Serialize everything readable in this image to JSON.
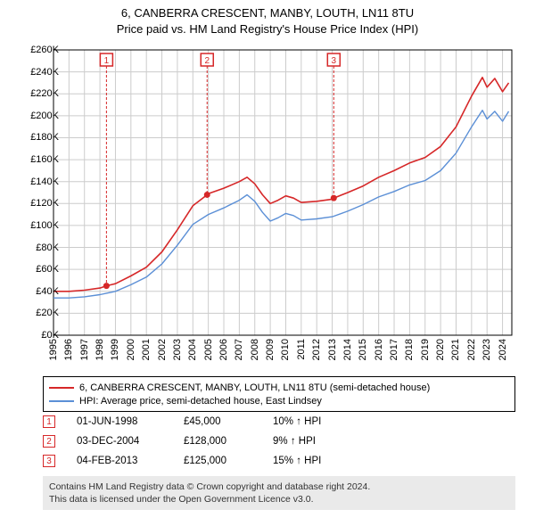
{
  "title": {
    "line1": "6, CANBERRA CRESCENT, MANBY, LOUTH, LN11 8TU",
    "line2": "Price paid vs. HM Land Registry's House Price Index (HPI)"
  },
  "chart": {
    "type": "line",
    "background_color": "#ffffff",
    "grid_color": "#cccccc",
    "axis_color": "#000000",
    "x_years": [
      1995,
      1996,
      1997,
      1998,
      1999,
      2000,
      2001,
      2002,
      2003,
      2004,
      2005,
      2006,
      2007,
      2008,
      2009,
      2010,
      2011,
      2012,
      2013,
      2014,
      2015,
      2016,
      2017,
      2018,
      2019,
      2020,
      2021,
      2022,
      2023,
      2024
    ],
    "xlim": [
      1995,
      2024.6
    ],
    "ylim": [
      0,
      260000
    ],
    "ytick_step": 20000,
    "ytick_prefix": "£",
    "ytick_suffix": "K",
    "label_fontsize": 11,
    "series": [
      {
        "name": "6, CANBERRA CRESCENT, MANBY, LOUTH, LN11 8TU (semi-detached house)",
        "color": "#d62728",
        "line_width": 1.6,
        "data": [
          [
            1995,
            40000
          ],
          [
            1996,
            40000
          ],
          [
            1997,
            41000
          ],
          [
            1998,
            43000
          ],
          [
            1998.42,
            45000
          ],
          [
            1999,
            47000
          ],
          [
            2000,
            54000
          ],
          [
            2001,
            62000
          ],
          [
            2002,
            76000
          ],
          [
            2003,
            96000
          ],
          [
            2004,
            118000
          ],
          [
            2004.92,
            128000
          ],
          [
            2005,
            129000
          ],
          [
            2006,
            134000
          ],
          [
            2007,
            140000
          ],
          [
            2007.5,
            144000
          ],
          [
            2008,
            138000
          ],
          [
            2008.5,
            128000
          ],
          [
            2009,
            120000
          ],
          [
            2009.5,
            123000
          ],
          [
            2010,
            127000
          ],
          [
            2010.5,
            125000
          ],
          [
            2011,
            121000
          ],
          [
            2012,
            122000
          ],
          [
            2013,
            124000
          ],
          [
            2013.1,
            125000
          ],
          [
            2014,
            130000
          ],
          [
            2015,
            136000
          ],
          [
            2016,
            144000
          ],
          [
            2017,
            150000
          ],
          [
            2018,
            157000
          ],
          [
            2019,
            162000
          ],
          [
            2020,
            172000
          ],
          [
            2021,
            190000
          ],
          [
            2022,
            218000
          ],
          [
            2022.7,
            235000
          ],
          [
            2023,
            226000
          ],
          [
            2023.5,
            234000
          ],
          [
            2024,
            222000
          ],
          [
            2024.4,
            230000
          ]
        ]
      },
      {
        "name": "HPI: Average price, semi-detached house, East Lindsey",
        "color": "#5b8fd6",
        "line_width": 1.4,
        "data": [
          [
            1995,
            34000
          ],
          [
            1996,
            34000
          ],
          [
            1997,
            35000
          ],
          [
            1998,
            37000
          ],
          [
            1999,
            40000
          ],
          [
            2000,
            46000
          ],
          [
            2001,
            53000
          ],
          [
            2002,
            65000
          ],
          [
            2003,
            82000
          ],
          [
            2004,
            101000
          ],
          [
            2005,
            110000
          ],
          [
            2006,
            116000
          ],
          [
            2007,
            123000
          ],
          [
            2007.5,
            128000
          ],
          [
            2008,
            122000
          ],
          [
            2008.5,
            112000
          ],
          [
            2009,
            104000
          ],
          [
            2009.5,
            107000
          ],
          [
            2010,
            111000
          ],
          [
            2010.5,
            109000
          ],
          [
            2011,
            105000
          ],
          [
            2012,
            106000
          ],
          [
            2013,
            108000
          ],
          [
            2014,
            113000
          ],
          [
            2015,
            119000
          ],
          [
            2016,
            126000
          ],
          [
            2017,
            131000
          ],
          [
            2018,
            137000
          ],
          [
            2019,
            141000
          ],
          [
            2020,
            150000
          ],
          [
            2021,
            166000
          ],
          [
            2022,
            190000
          ],
          [
            2022.7,
            205000
          ],
          [
            2023,
            197000
          ],
          [
            2023.5,
            204000
          ],
          [
            2024,
            195000
          ],
          [
            2024.4,
            204000
          ]
        ]
      }
    ],
    "event_markers": [
      {
        "num": "1",
        "x": 1998.42,
        "y": 45000,
        "color": "#d62728",
        "badge_y": 260000
      },
      {
        "num": "2",
        "x": 2004.92,
        "y": 128000,
        "color": "#d62728",
        "badge_y": 260000
      },
      {
        "num": "3",
        "x": 2013.1,
        "y": 125000,
        "color": "#d62728",
        "badge_y": 260000
      }
    ]
  },
  "legend": {
    "items": [
      {
        "color": "#d62728",
        "label": "6, CANBERRA CRESCENT, MANBY, LOUTH, LN11 8TU (semi-detached house)"
      },
      {
        "color": "#5b8fd6",
        "label": "HPI: Average price, semi-detached house, East Lindsey"
      }
    ]
  },
  "marker_rows": [
    {
      "num": "1",
      "color": "#d62728",
      "date": "01-JUN-1998",
      "price": "£45,000",
      "pct": "10% ↑ HPI"
    },
    {
      "num": "2",
      "color": "#d62728",
      "date": "03-DEC-2004",
      "price": "£128,000",
      "pct": "9% ↑ HPI"
    },
    {
      "num": "3",
      "color": "#d62728",
      "date": "04-FEB-2013",
      "price": "£125,000",
      "pct": "15% ↑ HPI"
    }
  ],
  "footer": {
    "line1": "Contains HM Land Registry data © Crown copyright and database right 2024.",
    "line2": "This data is licensed under the Open Government Licence v3.0."
  }
}
